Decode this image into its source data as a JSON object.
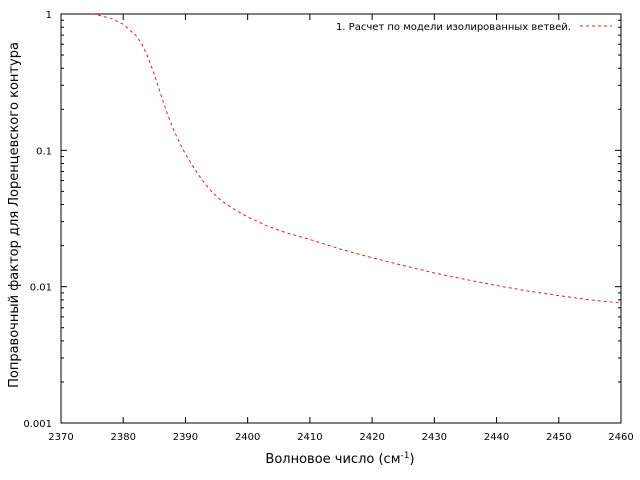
{
  "chart_data": {
    "type": "line",
    "title": "",
    "xlabel": "Волновое число (см",
    "xlabel_sup": "-1",
    "xlabel_close": ")",
    "ylabel": "Поправочный фактор для Лоренцевского контура",
    "xlim": [
      2370,
      2460
    ],
    "ylim": [
      0.001,
      1
    ],
    "y_scale": "log",
    "grid": false,
    "legend_position": "top-right",
    "x_ticks": [
      "2370",
      "2380",
      "2390",
      "2400",
      "2410",
      "2420",
      "2430",
      "2440",
      "2450",
      "2460"
    ],
    "y_ticks": [
      "0.001",
      "0.01",
      "0.1",
      "1"
    ],
    "series": [
      {
        "name": "1. Расчет по модели изолированных ветвей.",
        "color": "#e02020",
        "style": "dashed",
        "x": [
          2375,
          2376,
          2378,
          2380,
          2382,
          2383,
          2384,
          2385,
          2386,
          2387,
          2388,
          2389,
          2390,
          2391,
          2392,
          2393,
          2394,
          2395,
          2396,
          2398,
          2400,
          2403,
          2406,
          2410,
          2415,
          2420,
          2425,
          2430,
          2435,
          2440,
          2445,
          2450,
          2455,
          2460
        ],
        "y": [
          1.0,
          0.98,
          0.93,
          0.84,
          0.7,
          0.6,
          0.48,
          0.36,
          0.26,
          0.19,
          0.145,
          0.115,
          0.094,
          0.079,
          0.067,
          0.058,
          0.051,
          0.046,
          0.042,
          0.0365,
          0.0325,
          0.028,
          0.025,
          0.0222,
          0.0188,
          0.0163,
          0.0143,
          0.0126,
          0.0113,
          0.0102,
          0.0093,
          0.0086,
          0.008,
          0.0076
        ]
      }
    ]
  }
}
